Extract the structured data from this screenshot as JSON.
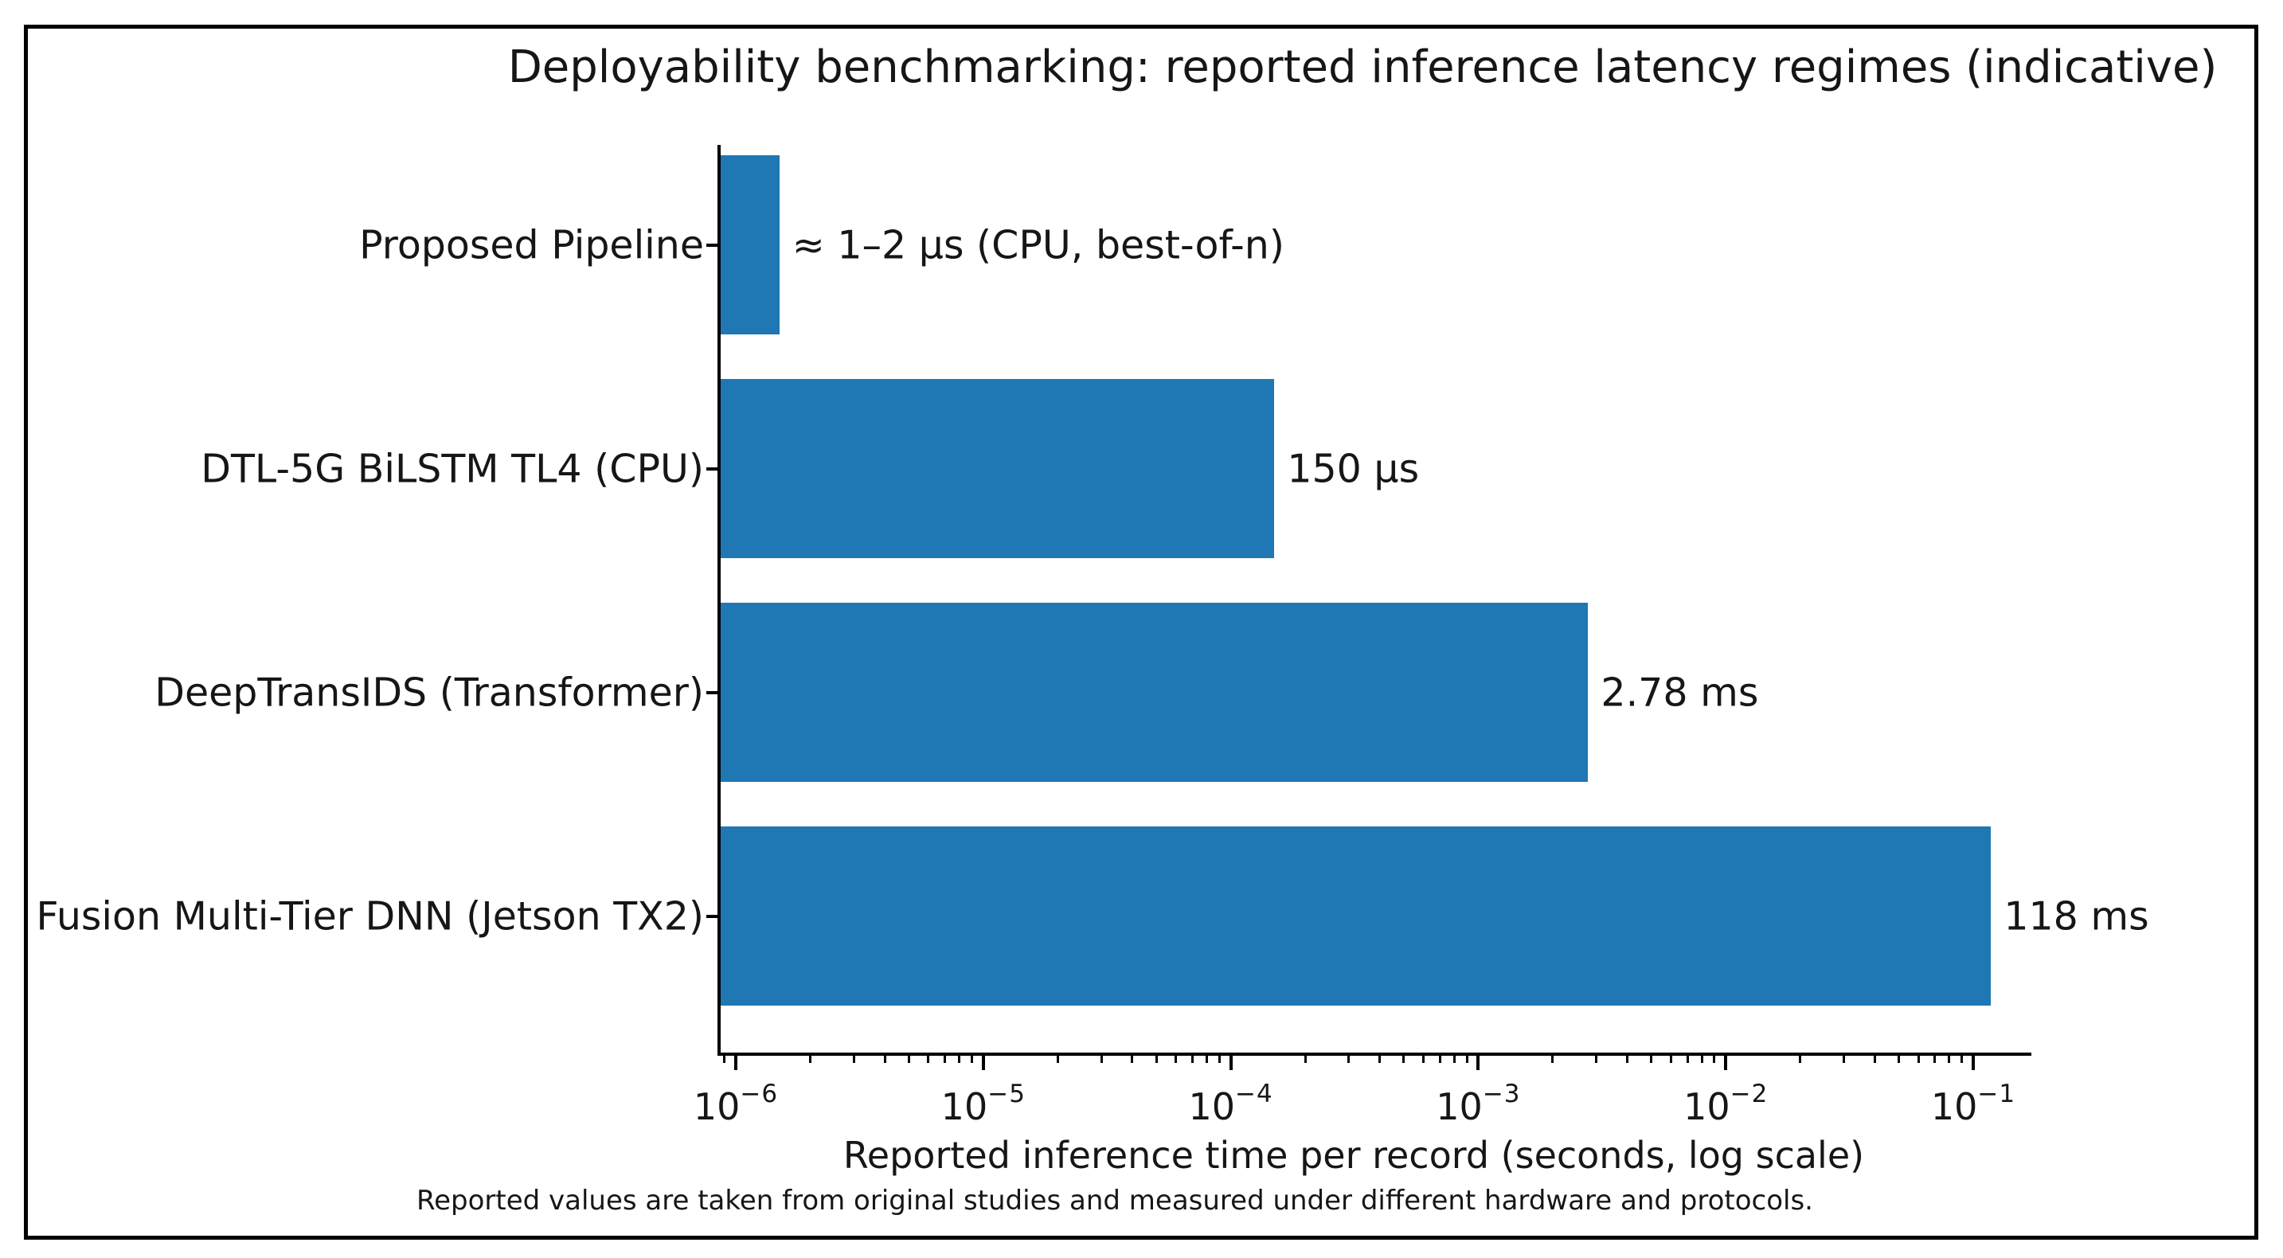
{
  "chart_data": {
    "type": "bar",
    "orientation": "horizontal",
    "title": "Deployability benchmarking: reported inference latency regimes (indicative)",
    "xlabel": "Reported inference time per record (seconds, log scale)",
    "footnote": "Reported values are taken from original studies and measured under different hardware and protocols.",
    "x_scale": "log",
    "xlim": [
      8.7e-07,
      0.166
    ],
    "grid": false,
    "legend": null,
    "bar_color": "#1f77b4",
    "axis_color": "#000000",
    "text_color": "#161616",
    "categories": [
      "Proposed Pipeline",
      "DTL-5G BiLSTM TL4 (CPU)",
      "DeepTransIDS (Transformer)",
      "Fusion Multi-Tier DNN (Jetson TX2)"
    ],
    "values_seconds": [
      1.5e-06,
      0.00015,
      0.00278,
      0.118
    ],
    "value_labels": [
      "≈ 1–2 µs (CPU, best-of-n)",
      "150 µs",
      "2.78 ms",
      "118 ms"
    ],
    "x_ticks": [
      {
        "exponent": -6,
        "label": "10⁻⁶"
      },
      {
        "exponent": -5,
        "label": "10⁻⁵"
      },
      {
        "exponent": -4,
        "label": "10⁻⁴"
      },
      {
        "exponent": -3,
        "label": "10⁻³"
      },
      {
        "exponent": -2,
        "label": "10⁻²"
      },
      {
        "exponent": -1,
        "label": "10⁻¹"
      }
    ]
  }
}
